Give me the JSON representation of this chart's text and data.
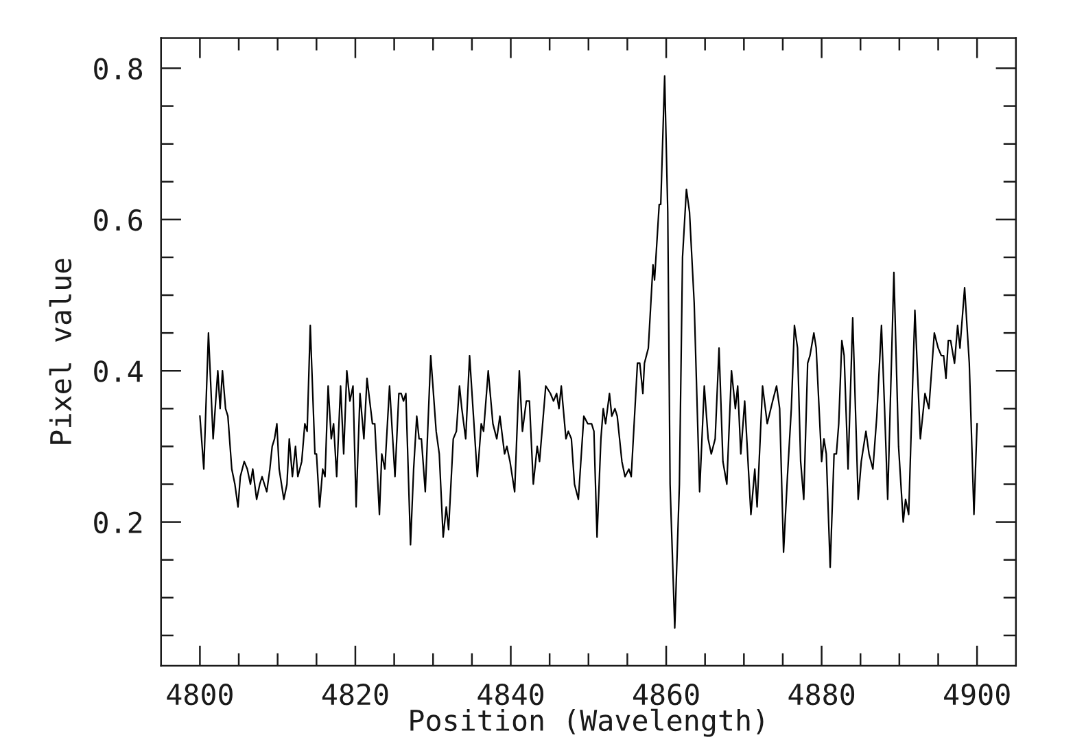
{
  "chart_data": {
    "type": "line",
    "xlabel": "Position (Wavelength)",
    "ylabel": "Pixel value",
    "color": "#000000",
    "xlim": [
      4795,
      4905
    ],
    "ylim": [
      0.01,
      0.84
    ],
    "xticks": [
      4800,
      {
        "value": 4805,
        "label": null
      },
      {
        "value": 4810,
        "label": null
      },
      {
        "value": 4815,
        "label": null
      },
      4820,
      {
        "value": 4825,
        "label": null
      },
      {
        "value": 4830,
        "label": null
      },
      {
        "value": 4835,
        "label": null
      },
      4840,
      {
        "value": 4845,
        "label": null
      },
      {
        "value": 4850,
        "label": null
      },
      {
        "value": 4855,
        "label": null
      },
      4860,
      {
        "value": 4865,
        "label": null
      },
      {
        "value": 4870,
        "label": null
      },
      {
        "value": 4875,
        "label": null
      },
      4880,
      {
        "value": 4885,
        "label": null
      },
      {
        "value": 4890,
        "label": null
      },
      {
        "value": 4895,
        "label": null
      },
      4900
    ],
    "yticks": [
      {
        "value": 0.05,
        "label": null
      },
      {
        "value": 0.1,
        "label": null
      },
      {
        "value": 0.15,
        "label": null
      },
      0.2,
      {
        "value": 0.25,
        "label": null
      },
      {
        "value": 0.3,
        "label": null
      },
      {
        "value": 0.35,
        "label": null
      },
      0.4,
      {
        "value": 0.45,
        "label": null
      },
      {
        "value": 0.5,
        "label": null
      },
      {
        "value": 0.55,
        "label": null
      },
      0.6,
      {
        "value": 0.65,
        "label": null
      },
      {
        "value": 0.7,
        "label": null
      },
      {
        "value": 0.75,
        "label": null
      },
      0.8
    ],
    "x": [
      4800.0,
      4800.5,
      4801.1,
      4801.7,
      4802.3,
      4802.6,
      4802.9,
      4803.3,
      4803.6,
      4804.1,
      4804.5,
      4804.9,
      4805.2,
      4805.7,
      4806.1,
      4806.5,
      4806.8,
      4807.3,
      4807.7,
      4808.0,
      4808.6,
      4809.0,
      4809.3,
      4809.6,
      4809.9,
      4810.2,
      4810.8,
      4811.2,
      4811.5,
      4811.9,
      4812.3,
      4812.6,
      4813.1,
      4813.5,
      4813.8,
      4814.2,
      4814.8,
      4815.0,
      4815.4,
      4815.8,
      4816.1,
      4816.5,
      4816.9,
      4817.2,
      4817.6,
      4818.1,
      4818.5,
      4818.9,
      4819.3,
      4819.7,
      4820.1,
      4820.6,
      4821.1,
      4821.5,
      4822.2,
      4822.5,
      4823.1,
      4823.4,
      4823.8,
      4824.4,
      4825.1,
      4825.6,
      4825.9,
      4826.2,
      4826.5,
      4827.1,
      4827.5,
      4827.9,
      4828.2,
      4828.5,
      4829.0,
      4829.7,
      4830.4,
      4830.8,
      4831.3,
      4831.7,
      4832.0,
      4832.6,
      4833.0,
      4833.4,
      4833.7,
      4834.2,
      4834.7,
      4835.2,
      4835.7,
      4836.2,
      4836.5,
      4837.1,
      4837.7,
      4838.2,
      4838.6,
      4839.2,
      4839.5,
      4839.9,
      4840.5,
      4841.1,
      4841.5,
      4842.0,
      4842.4,
      4842.9,
      4843.4,
      4843.7,
      4844.5,
      4845.1,
      4845.5,
      4845.9,
      4846.2,
      4846.5,
      4847.1,
      4847.4,
      4847.8,
      4848.2,
      4848.7,
      4849.4,
      4849.9,
      4850.4,
      4850.7,
      4851.1,
      4851.6,
      4851.9,
      4852.2,
      4852.7,
      4853.0,
      4853.4,
      4853.7,
      4854.3,
      4854.7,
      4855.2,
      4855.5,
      4856.3,
      4856.6,
      4857.0,
      4857.2,
      4857.7,
      4858.3,
      4858.5,
      4859.1,
      4859.3,
      4859.8,
      4860.2,
      4860.5,
      4861.1,
      4861.7,
      4862.1,
      4862.6,
      4863.0,
      4863.6,
      4864.3,
      4864.9,
      4865.4,
      4865.8,
      4866.3,
      4866.8,
      4867.3,
      4867.8,
      4868.4,
      4868.9,
      4869.2,
      4869.6,
      4870.1,
      4870.9,
      4871.4,
      4871.7,
      4872.4,
      4873.0,
      4873.7,
      4874.2,
      4874.6,
      4875.1,
      4875.6,
      4876.1,
      4876.5,
      4876.9,
      4877.3,
      4877.7,
      4878.2,
      4878.5,
      4879.0,
      4879.3,
      4880.0,
      4880.3,
      4880.6,
      4881.1,
      4881.6,
      4881.9,
      4882.2,
      4882.6,
      4882.9,
      4883.4,
      4884.0,
      4884.7,
      4885.1,
      4885.7,
      4886.1,
      4886.6,
      4887.1,
      4887.7,
      4888.1,
      4888.5,
      4889.3,
      4889.9,
      4890.5,
      4890.8,
      4891.2,
      4892.0,
      4892.7,
      4893.3,
      4893.8,
      4894.5,
      4895.0,
      4895.4,
      4895.7,
      4896.0,
      4896.3,
      4896.6,
      4897.1,
      4897.5,
      4897.8,
      4898.4,
      4899.0,
      4899.6,
      4900.0
    ],
    "values": [
      0.34,
      0.27,
      0.45,
      0.31,
      0.4,
      0.35,
      0.4,
      0.35,
      0.34,
      0.27,
      0.25,
      0.22,
      0.26,
      0.28,
      0.27,
      0.25,
      0.27,
      0.23,
      0.25,
      0.26,
      0.24,
      0.27,
      0.3,
      0.31,
      0.33,
      0.27,
      0.23,
      0.25,
      0.31,
      0.26,
      0.3,
      0.26,
      0.28,
      0.33,
      0.32,
      0.46,
      0.29,
      0.29,
      0.22,
      0.27,
      0.26,
      0.38,
      0.31,
      0.33,
      0.26,
      0.38,
      0.29,
      0.4,
      0.36,
      0.38,
      0.22,
      0.37,
      0.31,
      0.39,
      0.33,
      0.33,
      0.21,
      0.29,
      0.27,
      0.38,
      0.26,
      0.37,
      0.37,
      0.36,
      0.37,
      0.17,
      0.27,
      0.34,
      0.31,
      0.31,
      0.24,
      0.42,
      0.32,
      0.29,
      0.18,
      0.22,
      0.19,
      0.31,
      0.32,
      0.38,
      0.35,
      0.31,
      0.42,
      0.34,
      0.26,
      0.33,
      0.32,
      0.4,
      0.33,
      0.31,
      0.34,
      0.29,
      0.3,
      0.28,
      0.24,
      0.4,
      0.32,
      0.36,
      0.36,
      0.25,
      0.3,
      0.28,
      0.38,
      0.37,
      0.36,
      0.37,
      0.35,
      0.38,
      0.31,
      0.32,
      0.31,
      0.25,
      0.23,
      0.34,
      0.33,
      0.33,
      0.32,
      0.18,
      0.31,
      0.35,
      0.33,
      0.37,
      0.34,
      0.35,
      0.34,
      0.28,
      0.26,
      0.27,
      0.26,
      0.41,
      0.41,
      0.37,
      0.41,
      0.43,
      0.54,
      0.52,
      0.62,
      0.62,
      0.79,
      0.61,
      0.25,
      0.06,
      0.25,
      0.55,
      0.64,
      0.61,
      0.49,
      0.24,
      0.38,
      0.31,
      0.29,
      0.31,
      0.43,
      0.28,
      0.25,
      0.4,
      0.35,
      0.38,
      0.29,
      0.36,
      0.21,
      0.27,
      0.22,
      0.38,
      0.33,
      0.36,
      0.38,
      0.35,
      0.16,
      0.26,
      0.35,
      0.46,
      0.43,
      0.28,
      0.23,
      0.41,
      0.42,
      0.45,
      0.43,
      0.28,
      0.31,
      0.29,
      0.14,
      0.29,
      0.29,
      0.33,
      0.44,
      0.42,
      0.27,
      0.47,
      0.23,
      0.28,
      0.32,
      0.29,
      0.27,
      0.34,
      0.46,
      0.35,
      0.23,
      0.53,
      0.3,
      0.2,
      0.23,
      0.21,
      0.48,
      0.31,
      0.37,
      0.35,
      0.45,
      0.43,
      0.42,
      0.42,
      0.39,
      0.44,
      0.44,
      0.41,
      0.46,
      0.43,
      0.51,
      0.41,
      0.21,
      0.33
    ]
  }
}
